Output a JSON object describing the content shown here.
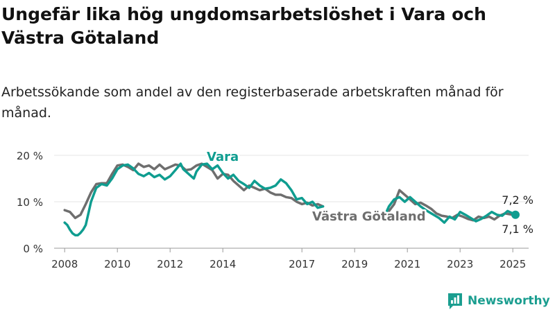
{
  "title": "Ungefär lika hög ungdomsarbetslöshet i Vara och Västra Götaland",
  "subtitle": "Arbetssökande som andel av den registerbaserade arbetskraften månad för månad.",
  "logo_text": "Newsworthy",
  "colors": {
    "vara": "#0f9d90",
    "vastra": "#6e6e6e",
    "axis": "#999999",
    "grid": "#e6e6e6"
  },
  "chart_data": {
    "type": "line",
    "title": "Ungefär lika hög ungdomsarbetslöshet i Vara och Västra Götaland",
    "subtitle": "Arbetssökande som andel av den registerbaserade arbetskraften månad för månad.",
    "xlabel": "",
    "ylabel": "",
    "xlim": [
      2007.6,
      2025.6
    ],
    "ylim": [
      0,
      20
    ],
    "y_ticks": [
      0,
      10,
      20
    ],
    "y_tick_labels": [
      "0 %",
      "10 %",
      "20 %"
    ],
    "x_ticks": [
      2008,
      2010,
      2012,
      2014,
      2017,
      2019,
      2021,
      2023,
      2025
    ],
    "x_tick_labels": [
      "2008",
      "2010",
      "2012",
      "2014",
      "2017",
      "2019",
      "2021",
      "2023",
      "2025"
    ],
    "grid": "horizontal",
    "series": [
      {
        "name": "Vara",
        "color": "#0f9d90",
        "end_label": "7,2 %",
        "points": [
          [
            2008.0,
            5.5
          ],
          [
            2008.1,
            5.0
          ],
          [
            2008.2,
            4.0
          ],
          [
            2008.3,
            3.2
          ],
          [
            2008.4,
            2.8
          ],
          [
            2008.5,
            2.8
          ],
          [
            2008.6,
            3.3
          ],
          [
            2008.7,
            4.0
          ],
          [
            2008.8,
            5.0
          ],
          [
            2008.9,
            7.5
          ],
          [
            2009.0,
            10.0
          ],
          [
            2009.1,
            11.5
          ],
          [
            2009.2,
            13.0
          ],
          [
            2009.4,
            13.8
          ],
          [
            2009.6,
            13.5
          ],
          [
            2009.8,
            15.0
          ],
          [
            2010.0,
            17.0
          ],
          [
            2010.2,
            17.8
          ],
          [
            2010.4,
            18.0
          ],
          [
            2010.6,
            17.2
          ],
          [
            2010.8,
            16.0
          ],
          [
            2011.0,
            15.5
          ],
          [
            2011.2,
            16.2
          ],
          [
            2011.4,
            15.3
          ],
          [
            2011.6,
            15.8
          ],
          [
            2011.8,
            14.8
          ],
          [
            2012.0,
            15.5
          ],
          [
            2012.2,
            16.8
          ],
          [
            2012.4,
            18.2
          ],
          [
            2012.5,
            17.0
          ],
          [
            2012.7,
            16.0
          ],
          [
            2012.9,
            15.0
          ],
          [
            2013.0,
            16.5
          ],
          [
            2013.2,
            18.0
          ],
          [
            2013.4,
            18.2
          ],
          [
            2013.6,
            17.0
          ],
          [
            2013.8,
            17.8
          ],
          [
            2014.0,
            16.2
          ],
          [
            2014.2,
            15.0
          ],
          [
            2014.4,
            15.8
          ],
          [
            2014.6,
            14.5
          ],
          [
            2014.8,
            13.8
          ],
          [
            2015.0,
            13.0
          ],
          [
            2015.2,
            14.5
          ],
          [
            2015.4,
            13.5
          ],
          [
            2015.6,
            12.8
          ],
          [
            2015.8,
            13.0
          ],
          [
            2016.0,
            13.5
          ],
          [
            2016.2,
            14.8
          ],
          [
            2016.4,
            14.0
          ],
          [
            2016.6,
            12.5
          ],
          [
            2016.8,
            10.5
          ],
          [
            2017.0,
            10.8
          ],
          [
            2017.2,
            9.5
          ],
          [
            2017.4,
            10.0
          ],
          [
            2017.6,
            8.7
          ],
          [
            2017.8,
            9.0
          ],
          [
            2019.9,
            7.0
          ],
          [
            2020.1,
            6.5
          ],
          [
            2020.3,
            9.0
          ],
          [
            2020.5,
            10.5
          ],
          [
            2020.7,
            11.0
          ],
          [
            2020.9,
            10.0
          ],
          [
            2021.1,
            11.0
          ],
          [
            2021.3,
            10.0
          ],
          [
            2021.5,
            9.0
          ],
          [
            2021.7,
            8.2
          ],
          [
            2022.2,
            6.5
          ],
          [
            2022.4,
            5.5
          ],
          [
            2022.6,
            6.8
          ],
          [
            2022.8,
            6.2
          ],
          [
            2023.0,
            7.8
          ],
          [
            2023.2,
            7.2
          ],
          [
            2023.4,
            6.5
          ],
          [
            2023.6,
            5.8
          ],
          [
            2023.8,
            6.3
          ],
          [
            2024.0,
            7.0
          ],
          [
            2024.2,
            7.8
          ],
          [
            2024.4,
            7.2
          ],
          [
            2024.6,
            7.0
          ],
          [
            2024.8,
            8.0
          ],
          [
            2025.0,
            7.5
          ],
          [
            2025.1,
            7.2
          ]
        ]
      },
      {
        "name": "Västra Götaland",
        "color": "#6e6e6e",
        "end_label": "7,1 %",
        "points": [
          [
            2008.0,
            8.2
          ],
          [
            2008.2,
            7.8
          ],
          [
            2008.4,
            6.5
          ],
          [
            2008.6,
            7.2
          ],
          [
            2008.8,
            9.5
          ],
          [
            2009.0,
            12.0
          ],
          [
            2009.2,
            13.8
          ],
          [
            2009.4,
            14.0
          ],
          [
            2009.6,
            14.0
          ],
          [
            2009.8,
            16.0
          ],
          [
            2010.0,
            17.8
          ],
          [
            2010.2,
            18.0
          ],
          [
            2010.4,
            17.5
          ],
          [
            2010.6,
            16.8
          ],
          [
            2010.8,
            18.2
          ],
          [
            2011.0,
            17.5
          ],
          [
            2011.2,
            17.8
          ],
          [
            2011.4,
            17.0
          ],
          [
            2011.6,
            18.0
          ],
          [
            2011.8,
            17.0
          ],
          [
            2012.0,
            17.5
          ],
          [
            2012.2,
            18.0
          ],
          [
            2012.4,
            17.8
          ],
          [
            2012.6,
            16.8
          ],
          [
            2012.8,
            17.0
          ],
          [
            2013.0,
            17.8
          ],
          [
            2013.2,
            18.2
          ],
          [
            2013.4,
            17.5
          ],
          [
            2013.6,
            16.8
          ],
          [
            2013.8,
            15.0
          ],
          [
            2014.0,
            16.0
          ],
          [
            2014.2,
            15.8
          ],
          [
            2014.4,
            14.5
          ],
          [
            2014.6,
            13.5
          ],
          [
            2014.8,
            12.5
          ],
          [
            2015.0,
            13.5
          ],
          [
            2015.2,
            13.0
          ],
          [
            2015.4,
            12.5
          ],
          [
            2015.6,
            12.8
          ],
          [
            2015.8,
            12.0
          ],
          [
            2016.0,
            11.5
          ],
          [
            2016.2,
            11.5
          ],
          [
            2016.4,
            11.0
          ],
          [
            2016.6,
            10.8
          ],
          [
            2016.8,
            10.0
          ],
          [
            2017.0,
            9.5
          ],
          [
            2017.2,
            9.8
          ],
          [
            2017.4,
            9.2
          ],
          [
            2017.6,
            9.5
          ],
          [
            2017.8,
            9.0
          ],
          [
            2020.3,
            8.0
          ],
          [
            2020.5,
            9.5
          ],
          [
            2020.7,
            12.5
          ],
          [
            2020.9,
            11.5
          ],
          [
            2021.1,
            10.5
          ],
          [
            2021.3,
            9.5
          ],
          [
            2021.5,
            9.8
          ],
          [
            2021.7,
            9.2
          ],
          [
            2021.9,
            8.5
          ],
          [
            2022.1,
            7.5
          ],
          [
            2022.3,
            7.0
          ],
          [
            2022.5,
            6.8
          ],
          [
            2022.7,
            6.5
          ],
          [
            2022.9,
            7.2
          ],
          [
            2023.1,
            6.8
          ],
          [
            2023.3,
            6.3
          ],
          [
            2023.5,
            6.0
          ],
          [
            2023.7,
            6.8
          ],
          [
            2023.9,
            6.5
          ],
          [
            2024.1,
            6.8
          ],
          [
            2024.3,
            6.2
          ],
          [
            2024.5,
            7.0
          ],
          [
            2024.7,
            7.5
          ],
          [
            2024.9,
            7.3
          ],
          [
            2025.1,
            7.1
          ]
        ]
      }
    ]
  }
}
